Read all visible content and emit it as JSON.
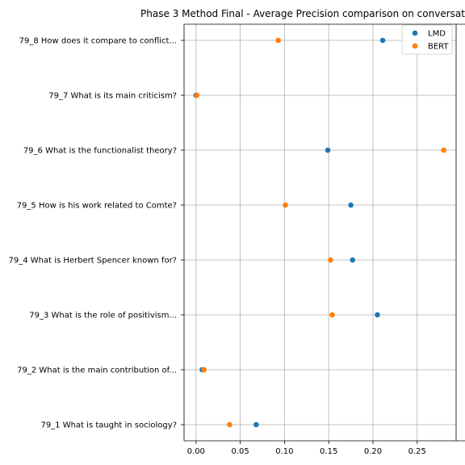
{
  "chart_data": {
    "type": "scatter",
    "title": "Phase 3 Method Final - Average Precision comparison on conversat",
    "xlabel": "",
    "ylabel": "",
    "xlim": [
      -0.0135,
      0.294
    ],
    "xticks": [
      0.0,
      0.05,
      0.1,
      0.15,
      0.2,
      0.25
    ],
    "xtick_labels": [
      "0.00",
      "0.05",
      "0.10",
      "0.15",
      "0.20",
      "0.25"
    ],
    "categories": [
      "79_1 What is taught in sociology?",
      "79_2 What is the main contribution of...",
      "79_3 What is the role of positivism...",
      "79_4 What is Herbert Spencer known for?",
      "79_5 How is his work related to Comte?",
      "79_6 What is the functionalist theory?",
      "79_7 What is its main criticism?",
      "79_8 How does it compare to conflict..."
    ],
    "series": [
      {
        "name": "LMD",
        "color": "#1f77b4",
        "values": [
          0.068,
          0.007,
          0.205,
          0.177,
          0.175,
          0.149,
          0.0,
          0.211
        ]
      },
      {
        "name": "BERT",
        "color": "#ff7f0e",
        "values": [
          0.038,
          0.009,
          0.154,
          0.152,
          0.101,
          0.28,
          0.001,
          0.093
        ]
      }
    ],
    "grid": true,
    "legend_position": "top-right"
  }
}
